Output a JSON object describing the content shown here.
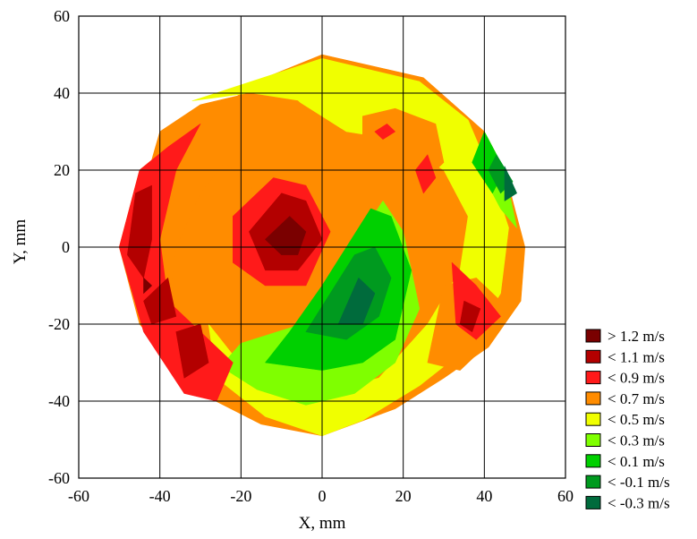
{
  "chart_data": {
    "type": "contour",
    "title": "",
    "xlabel": "X, mm",
    "ylabel": "Y, mm",
    "xlim": [
      -60,
      60
    ],
    "ylim": [
      -60,
      60
    ],
    "x_ticks": [
      -60,
      -40,
      -20,
      0,
      20,
      40,
      60
    ],
    "y_ticks": [
      -60,
      -40,
      -20,
      0,
      20,
      40,
      60
    ],
    "grid": true,
    "legend_position": "right-bottom",
    "legend": [
      {
        "label": "> 1.2 m/s",
        "color": "#7a0000"
      },
      {
        "label": "< 1.1 m/s",
        "color": "#b30000"
      },
      {
        "label": "< 0.9 m/s",
        "color": "#ff1a1a"
      },
      {
        "label": "< 0.7 m/s",
        "color": "#ff8c00"
      },
      {
        "label": "< 0.5 m/s",
        "color": "#f0ff00"
      },
      {
        "label": "< 0.3 m/s",
        "color": "#7fff00"
      },
      {
        "label": "< 0.1 m/s",
        "color": "#00d000"
      },
      {
        "label": "< -0.1 m/s",
        "color": "#009a1f"
      },
      {
        "label": "< -0.3 m/s",
        "color": "#006b3c"
      }
    ],
    "regions": [
      {
        "level": "< 0.7 m/s",
        "points": [
          [
            0,
            50
          ],
          [
            25,
            44
          ],
          [
            40,
            30
          ],
          [
            45,
            20
          ],
          [
            50,
            0
          ],
          [
            49,
            -14
          ],
          [
            41,
            -26
          ],
          [
            30,
            -34
          ],
          [
            18,
            -42
          ],
          [
            0,
            -49
          ],
          [
            -15,
            -46
          ],
          [
            -30,
            -38
          ],
          [
            -45,
            -20
          ],
          [
            -50,
            0
          ],
          [
            -45,
            20
          ],
          [
            -30,
            33
          ],
          [
            -14,
            44
          ]
        ]
      },
      {
        "level": "< 0.5 m/s",
        "points": [
          [
            0,
            49
          ],
          [
            24,
            43
          ],
          [
            36,
            33
          ],
          [
            42,
            18
          ],
          [
            46,
            5
          ],
          [
            44,
            -12
          ],
          [
            36,
            -26
          ],
          [
            24,
            -36
          ],
          [
            10,
            -45
          ],
          [
            0,
            -49
          ],
          [
            -14,
            -44
          ],
          [
            -26,
            -34
          ],
          [
            -28,
            -20
          ],
          [
            -22,
            -28
          ],
          [
            -10,
            -33
          ],
          [
            0,
            -38
          ],
          [
            14,
            -34
          ],
          [
            26,
            -20
          ],
          [
            34,
            -6
          ],
          [
            36,
            8
          ],
          [
            30,
            20
          ],
          [
            18,
            28
          ],
          [
            6,
            30
          ],
          [
            -6,
            38
          ],
          [
            -18,
            40
          ],
          [
            -32,
            38
          ]
        ]
      },
      {
        "level": "< 0.3 m/s",
        "points": [
          [
            -20,
            -25
          ],
          [
            -5,
            -20
          ],
          [
            3,
            -7
          ],
          [
            10,
            4
          ],
          [
            15,
            12
          ],
          [
            20,
            4
          ],
          [
            24,
            -16
          ],
          [
            18,
            -30
          ],
          [
            8,
            -38
          ],
          [
            -4,
            -41
          ],
          [
            -16,
            -37
          ],
          [
            -25,
            -31
          ]
        ]
      },
      {
        "level": "< 0.3 m/s",
        "points": [
          [
            40,
            30
          ],
          [
            45,
            20
          ],
          [
            48,
            5
          ],
          [
            44,
            10
          ],
          [
            38,
            22
          ]
        ]
      },
      {
        "level": "< 0.1 m/s",
        "points": [
          [
            -14,
            -30
          ],
          [
            -8,
            -22
          ],
          [
            0,
            -10
          ],
          [
            6,
            0
          ],
          [
            12,
            10
          ],
          [
            17,
            8
          ],
          [
            22,
            -6
          ],
          [
            18,
            -24
          ],
          [
            10,
            -30
          ],
          [
            0,
            -32
          ]
        ]
      },
      {
        "level": "< 0.1 m/s",
        "points": [
          [
            40,
            30
          ],
          [
            45,
            20
          ],
          [
            42,
            14
          ],
          [
            37,
            22
          ]
        ]
      },
      {
        "level": "< -0.1 m/s",
        "points": [
          [
            -4,
            -22
          ],
          [
            2,
            -12
          ],
          [
            8,
            -2
          ],
          [
            13,
            0
          ],
          [
            17,
            -8
          ],
          [
            14,
            -18
          ],
          [
            6,
            -24
          ]
        ]
      },
      {
        "level": "< -0.1 m/s",
        "points": [
          [
            43,
            24
          ],
          [
            47,
            17
          ],
          [
            44,
            14
          ],
          [
            41,
            20
          ]
        ]
      },
      {
        "level": "< -0.3 m/s",
        "points": [
          [
            4,
            -20
          ],
          [
            9,
            -8
          ],
          [
            13,
            -12
          ],
          [
            10,
            -20
          ]
        ]
      },
      {
        "level": "< -0.3 m/s",
        "points": [
          [
            45,
            21
          ],
          [
            48,
            14
          ],
          [
            45,
            12
          ]
        ]
      },
      {
        "level": "< 0.7 m/s",
        "points": [
          [
            -40,
            30
          ],
          [
            -30,
            37
          ],
          [
            -18,
            40
          ],
          [
            -6,
            38
          ],
          [
            2,
            30
          ],
          [
            2,
            20
          ],
          [
            -8,
            12
          ],
          [
            -16,
            14
          ],
          [
            -24,
            22
          ],
          [
            -30,
            14
          ],
          [
            -36,
            0
          ],
          [
            -38,
            -18
          ],
          [
            -34,
            -30
          ],
          [
            -40,
            -26
          ],
          [
            -44,
            -10
          ],
          [
            -46,
            8
          ]
        ]
      },
      {
        "level": "< 0.7 m/s",
        "points": [
          [
            10,
            34
          ],
          [
            18,
            36
          ],
          [
            28,
            32
          ],
          [
            30,
            22
          ],
          [
            24,
            16
          ],
          [
            16,
            20
          ],
          [
            10,
            26
          ]
        ]
      },
      {
        "level": "< 0.7 m/s",
        "points": [
          [
            30,
            -10
          ],
          [
            38,
            -8
          ],
          [
            44,
            -14
          ],
          [
            42,
            -24
          ],
          [
            34,
            -32
          ],
          [
            26,
            -30
          ],
          [
            28,
            -20
          ]
        ]
      },
      {
        "level": "< 0.9 m/s",
        "points": [
          [
            -45,
            20
          ],
          [
            -38,
            26
          ],
          [
            -30,
            32
          ],
          [
            -36,
            20
          ],
          [
            -40,
            2
          ],
          [
            -38,
            -14
          ],
          [
            -30,
            -22
          ],
          [
            -22,
            -30
          ],
          [
            -26,
            -40
          ],
          [
            -34,
            -38
          ],
          [
            -44,
            -22
          ],
          [
            -50,
            0
          ]
        ]
      },
      {
        "level": "< 0.9 m/s",
        "points": [
          [
            -22,
            8
          ],
          [
            -12,
            18
          ],
          [
            -4,
            16
          ],
          [
            2,
            4
          ],
          [
            -4,
            -10
          ],
          [
            -14,
            -10
          ],
          [
            -22,
            -4
          ]
        ]
      },
      {
        "level": "< 0.9 m/s",
        "points": [
          [
            32,
            -4
          ],
          [
            38,
            -10
          ],
          [
            44,
            -18
          ],
          [
            38,
            -24
          ],
          [
            33,
            -20
          ]
        ]
      },
      {
        "level": "< 0.9 m/s",
        "points": [
          [
            13,
            30
          ],
          [
            16,
            32
          ],
          [
            18,
            30
          ],
          [
            15,
            28
          ]
        ]
      },
      {
        "level": "< 0.9 m/s",
        "points": [
          [
            23,
            20
          ],
          [
            26,
            24
          ],
          [
            28,
            18
          ],
          [
            25,
            14
          ]
        ]
      },
      {
        "level": "< 1.1 m/s",
        "points": [
          [
            -46,
            14
          ],
          [
            -42,
            16
          ],
          [
            -42,
            2
          ],
          [
            -44,
            -8
          ],
          [
            -48,
            -2
          ]
        ]
      },
      {
        "level": "< 1.1 m/s",
        "points": [
          [
            -44,
            -14
          ],
          [
            -38,
            -8
          ],
          [
            -36,
            -18
          ],
          [
            -42,
            -20
          ]
        ]
      },
      {
        "level": "< 1.1 m/s",
        "points": [
          [
            -36,
            -22
          ],
          [
            -30,
            -20
          ],
          [
            -28,
            -30
          ],
          [
            -34,
            -34
          ]
        ]
      },
      {
        "level": "< 1.1 m/s",
        "points": [
          [
            -18,
            4
          ],
          [
            -10,
            14
          ],
          [
            -4,
            12
          ],
          [
            0,
            2
          ],
          [
            -6,
            -6
          ],
          [
            -14,
            -6
          ]
        ]
      },
      {
        "level": "< 1.1 m/s",
        "points": [
          [
            35,
            -14
          ],
          [
            39,
            -16
          ],
          [
            37,
            -22
          ],
          [
            34,
            -20
          ]
        ]
      },
      {
        "level": "> 1.2 m/s",
        "points": [
          [
            -14,
            2
          ],
          [
            -8,
            8
          ],
          [
            -4,
            4
          ],
          [
            -6,
            -2
          ],
          [
            -10,
            -2
          ]
        ]
      },
      {
        "level": "> 1.2 m/s",
        "points": [
          [
            -44,
            -8
          ],
          [
            -42,
            -10
          ],
          [
            -44,
            -12
          ]
        ]
      }
    ]
  }
}
